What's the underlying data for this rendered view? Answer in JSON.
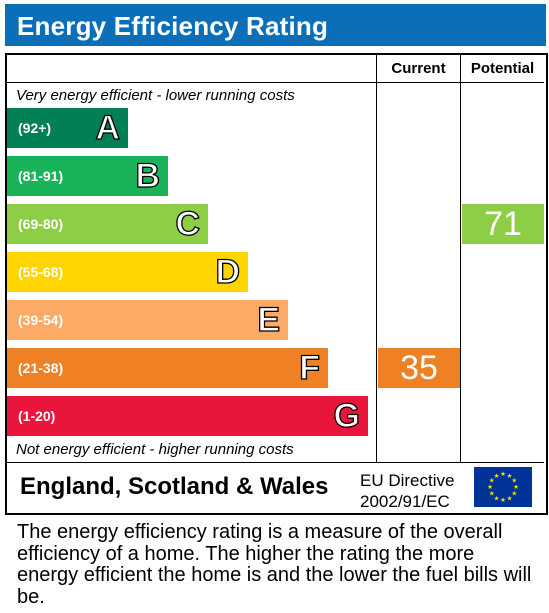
{
  "header": {
    "title": "Energy Efficiency Rating"
  },
  "columns": {
    "current": "Current",
    "potential": "Potential"
  },
  "notes": {
    "top": "Very energy efficient - lower running costs",
    "bottom": "Not energy efficient - higher running costs"
  },
  "chart_data": {
    "type": "bar",
    "title": "Energy Efficiency Rating",
    "categories": [
      "A",
      "B",
      "C",
      "D",
      "E",
      "F",
      "G"
    ],
    "ranges": [
      "(92+)",
      "(81-91)",
      "(69-80)",
      "(55-68)",
      "(39-54)",
      "(21-38)",
      "(1-20)"
    ],
    "colors": [
      "#008054",
      "#19b459",
      "#8dce46",
      "#ffd500",
      "#fcaa65",
      "#ef8023",
      "#e9153b"
    ],
    "current": {
      "value": 35,
      "band": "F",
      "color": "#ef8023"
    },
    "potential": {
      "value": 71,
      "band": "C",
      "color": "#8dce46"
    }
  },
  "footer": {
    "region": "England, Scotland & Wales",
    "directive_line1": "EU Directive",
    "directive_line2": "2002/91/EC"
  },
  "footnote": "The energy efficiency rating is a measure of the overall efficiency of a home. The higher the rating the more energy efficient the home is and the lower the fuel bills will be."
}
